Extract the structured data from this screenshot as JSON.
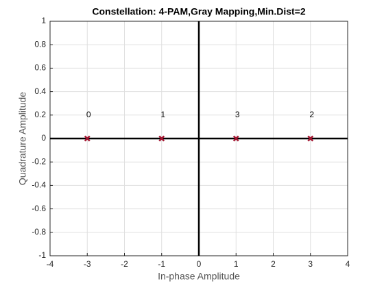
{
  "chart_data": {
    "type": "scatter",
    "title": "Constellation: 4-PAM,Gray Mapping,Min.Dist=2",
    "xlabel": "In-phase Amplitude",
    "ylabel": "Quadrature Amplitude",
    "x": [
      -3,
      -1,
      1,
      3
    ],
    "values": [
      0,
      0,
      0,
      0
    ],
    "point_labels": [
      "0",
      "1",
      "3",
      "2"
    ],
    "color": "#a2142f",
    "xlim": [
      -4,
      4
    ],
    "xticks": [
      -4,
      -3,
      -2,
      -1,
      0,
      1,
      2,
      3,
      4
    ],
    "ylim": [
      -1,
      1
    ],
    "yticks": [
      -1,
      -0.8,
      -0.6,
      -0.4,
      -0.2,
      0,
      0.2,
      0.4,
      0.6,
      0.8,
      1
    ],
    "grid": true
  }
}
